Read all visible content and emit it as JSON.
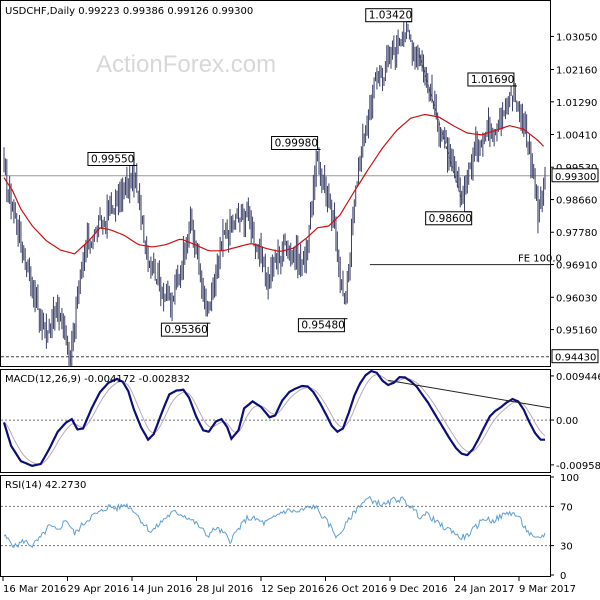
{
  "watermark": "ActionForex.com",
  "colors": {
    "price": "#3a3f66",
    "ma": "#cc1111",
    "macd": "#0b0f7a",
    "signal": "#b9aab9",
    "rsi": "#5f9fd2",
    "grid": "#999999",
    "frame": "#000000"
  },
  "chart_data": [
    {
      "type": "candlestick",
      "title": "USDCHF,Daily  0.99223 0.99386 0.99126 0.99300",
      "symbol": "USDCHF",
      "timeframe": "Daily",
      "ohlc": {
        "open": 0.99223,
        "high": 0.99386,
        "low": 0.99126,
        "close": 0.993
      },
      "ylim": [
        0.9418,
        1.0395
      ],
      "yticks": [
        "1.03050",
        "1.02160",
        "1.01290",
        "1.00410",
        "0.99530",
        "0.98660",
        "0.97780",
        "0.96910",
        "0.96030",
        "0.95160"
      ],
      "current_price": {
        "value": 0.993,
        "label": "0.99300"
      },
      "support_line": {
        "value": 0.9443,
        "label": "0.94430"
      },
      "fe_level": {
        "value": 0.9691,
        "label": "FE 100.0"
      },
      "xticks": [
        "16 Mar 2016",
        "29 Apr 2016",
        "14 Jun 2016",
        "28 Jul 2016",
        "12 Sep 2016",
        "26 Oct 2016",
        "9 Dec 2016",
        "24 Jan 2017",
        "9 Mar 2017"
      ],
      "moving_average": [
        [
          0,
          0.9925
        ],
        [
          6,
          0.989
        ],
        [
          12,
          0.984
        ],
        [
          20,
          0.9795
        ],
        [
          30,
          0.9755
        ],
        [
          40,
          0.973
        ],
        [
          50,
          0.972
        ],
        [
          60,
          0.9755
        ],
        [
          68,
          0.979
        ],
        [
          75,
          0.9785
        ],
        [
          85,
          0.977
        ],
        [
          95,
          0.9745
        ],
        [
          105,
          0.9738
        ],
        [
          115,
          0.9745
        ],
        [
          125,
          0.976
        ],
        [
          135,
          0.9745
        ],
        [
          145,
          0.9728
        ],
        [
          155,
          0.9728
        ],
        [
          165,
          0.9738
        ],
        [
          175,
          0.9748
        ],
        [
          185,
          0.9735
        ],
        [
          195,
          0.9726
        ],
        [
          205,
          0.9735
        ],
        [
          215,
          0.9765
        ],
        [
          222,
          0.979
        ],
        [
          230,
          0.9795
        ],
        [
          238,
          0.9825
        ],
        [
          248,
          0.9888
        ],
        [
          258,
          0.9948
        ],
        [
          268,
          1.0005
        ],
        [
          278,
          1.0052
        ],
        [
          288,
          1.0085
        ],
        [
          298,
          1.0095
        ],
        [
          308,
          1.0088
        ],
        [
          318,
          1.0065
        ],
        [
          328,
          1.0045
        ],
        [
          338,
          1.004
        ],
        [
          348,
          1.0052
        ],
        [
          358,
          1.0065
        ],
        [
          368,
          1.0055
        ],
        [
          378,
          1.0025
        ],
        [
          383,
          1.0005
        ]
      ],
      "annotations": [
        {
          "label": "0.99550",
          "idx": 92,
          "value": 0.9955,
          "side": "top"
        },
        {
          "label": "0.95360",
          "idx": 144,
          "value": 0.9536,
          "side": "bottom"
        },
        {
          "label": "0.99980",
          "idx": 222,
          "value": 0.9998,
          "side": "top"
        },
        {
          "label": "0.95480",
          "idx": 241,
          "value": 0.9548,
          "side": "bottom"
        },
        {
          "label": "1.03420",
          "idx": 283,
          "value": 1.0342,
          "side": "top"
        },
        {
          "label": "0.98600",
          "idx": 324,
          "value": 0.986,
          "side": "bottom"
        },
        {
          "label": "1.01690",
          "idx": 361,
          "value": 1.0169,
          "side": "top"
        }
      ]
    },
    {
      "type": "line",
      "title": "MACD(12,26,9) -0.004172 -0.002832",
      "macd": -0.004172,
      "signal": -0.002832,
      "ylim": [
        -0.0109,
        0.0105
      ],
      "yticks": [
        "0.009446",
        "0.00",
        "-0.009588"
      ],
      "series_macd": [
        [
          0,
          -0.0005
        ],
        [
          5,
          -0.0055
        ],
        [
          12,
          -0.0088
        ],
        [
          20,
          -0.0098
        ],
        [
          26,
          -0.0094
        ],
        [
          32,
          -0.0062
        ],
        [
          38,
          -0.0025
        ],
        [
          44,
          -0.0005
        ],
        [
          48,
          0.0002
        ],
        [
          52,
          -0.002
        ],
        [
          56,
          -0.0018
        ],
        [
          62,
          0.0025
        ],
        [
          68,
          0.006
        ],
        [
          74,
          0.008
        ],
        [
          80,
          0.0088
        ],
        [
          84,
          0.0082
        ],
        [
          88,
          0.0062
        ],
        [
          92,
          0.0022
        ],
        [
          97,
          -0.0015
        ],
        [
          102,
          -0.0042
        ],
        [
          106,
          -0.003
        ],
        [
          112,
          0.0018
        ],
        [
          117,
          0.0055
        ],
        [
          122,
          0.0063
        ],
        [
          127,
          0.0065
        ],
        [
          131,
          0.0048
        ],
        [
          136,
          0.0008
        ],
        [
          141,
          -0.0022
        ],
        [
          145,
          -0.0025
        ],
        [
          150,
          -0.0003
        ],
        [
          154,
          0.0002
        ],
        [
          158,
          -0.0015
        ],
        [
          161,
          -0.004
        ],
        [
          166,
          -0.0022
        ],
        [
          170,
          0.0025
        ],
        [
          176,
          0.004
        ],
        [
          182,
          0.0028
        ],
        [
          188,
          0.0006
        ],
        [
          192,
          0.001
        ],
        [
          197,
          0.0042
        ],
        [
          202,
          0.006
        ],
        [
          206,
          0.0067
        ],
        [
          211,
          0.0073
        ],
        [
          215,
          0.0072
        ],
        [
          219,
          0.006
        ],
        [
          224,
          0.0035
        ],
        [
          228,
          0.0012
        ],
        [
          232,
          -0.0012
        ],
        [
          236,
          -0.0025
        ],
        [
          240,
          -0.0018
        ],
        [
          244,
          0.0015
        ],
        [
          248,
          0.0052
        ],
        [
          252,
          0.0078
        ],
        [
          256,
          0.0096
        ],
        [
          260,
          0.0105
        ],
        [
          264,
          0.0101
        ],
        [
          268,
          0.0084
        ],
        [
          272,
          0.0075
        ],
        [
          276,
          0.008
        ],
        [
          280,
          0.0092
        ],
        [
          284,
          0.0091
        ],
        [
          288,
          0.0083
        ],
        [
          292,
          0.0072
        ],
        [
          296,
          0.0055
        ],
        [
          300,
          0.0038
        ],
        [
          304,
          0.0018
        ],
        [
          308,
          -0.0002
        ],
        [
          312,
          -0.0022
        ],
        [
          316,
          -0.0042
        ],
        [
          320,
          -0.006
        ],
        [
          324,
          -0.0072
        ],
        [
          328,
          -0.0075
        ],
        [
          332,
          -0.0062
        ],
        [
          336,
          -0.004
        ],
        [
          340,
          -0.0015
        ],
        [
          344,
          0.0008
        ],
        [
          348,
          0.002
        ],
        [
          352,
          0.0028
        ],
        [
          356,
          0.0038
        ],
        [
          360,
          0.0045
        ],
        [
          364,
          0.004
        ],
        [
          368,
          0.0022
        ],
        [
          372,
          -0.0005
        ],
        [
          376,
          -0.0028
        ],
        [
          380,
          -0.0042
        ],
        [
          383,
          -0.0042
        ]
      ]
    },
    {
      "type": "line",
      "title": "RSI(14) 42.2730",
      "value": 42.273,
      "ylim": [
        0,
        100
      ],
      "yticks": [
        100,
        70,
        30,
        0
      ],
      "levels": [
        70,
        30
      ],
      "series": [
        [
          0,
          40
        ],
        [
          8,
          29
        ],
        [
          14,
          35
        ],
        [
          20,
          30
        ],
        [
          26,
          38
        ],
        [
          32,
          50
        ],
        [
          38,
          45
        ],
        [
          44,
          57
        ],
        [
          50,
          42
        ],
        [
          56,
          52
        ],
        [
          62,
          60
        ],
        [
          68,
          64
        ],
        [
          74,
          70
        ],
        [
          80,
          68
        ],
        [
          86,
          72
        ],
        [
          92,
          66
        ],
        [
          98,
          54
        ],
        [
          104,
          44
        ],
        [
          108,
          49
        ],
        [
          114,
          58
        ],
        [
          120,
          64
        ],
        [
          126,
          62
        ],
        [
          132,
          57
        ],
        [
          138,
          50
        ],
        [
          144,
          40
        ],
        [
          150,
          48
        ],
        [
          156,
          42
        ],
        [
          160,
          35
        ],
        [
          166,
          47
        ],
        [
          172,
          58
        ],
        [
          178,
          57
        ],
        [
          184,
          53
        ],
        [
          190,
          57
        ],
        [
          196,
          64
        ],
        [
          202,
          66
        ],
        [
          208,
          64
        ],
        [
          214,
          68
        ],
        [
          220,
          70
        ],
        [
          226,
          59
        ],
        [
          232,
          48
        ],
        [
          236,
          38
        ],
        [
          240,
          47
        ],
        [
          246,
          60
        ],
        [
          252,
          72
        ],
        [
          258,
          78
        ],
        [
          264,
          74
        ],
        [
          270,
          71
        ],
        [
          276,
          77
        ],
        [
          282,
          77
        ],
        [
          288,
          70
        ],
        [
          294,
          60
        ],
        [
          300,
          62
        ],
        [
          306,
          54
        ],
        [
          312,
          48
        ],
        [
          318,
          45
        ],
        [
          322,
          38
        ],
        [
          328,
          40
        ],
        [
          334,
          49
        ],
        [
          340,
          58
        ],
        [
          346,
          55
        ],
        [
          352,
          60
        ],
        [
          358,
          64
        ],
        [
          364,
          60
        ],
        [
          368,
          50
        ],
        [
          372,
          42
        ],
        [
          376,
          36
        ],
        [
          380,
          39
        ],
        [
          383,
          42
        ]
      ]
    }
  ]
}
